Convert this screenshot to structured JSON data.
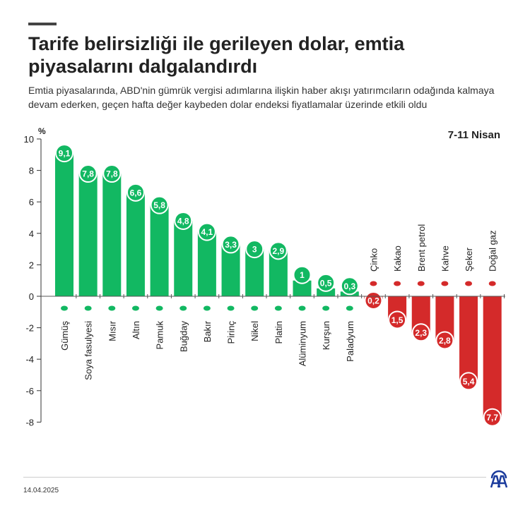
{
  "title": "Tarife belirsizliği ile gerileyen dolar, emtia piyasalarını dalgalandırdı",
  "subtitle": "Emtia piyasalarında, ABD'nin gümrük vergisi adımlarına ilişkin haber akışı yatırımcıların odağında kalmaya devam ederken, geçen hafta değer kaybeden dolar endeksi fiyatlamalar üzerinde etkili oldu",
  "footer": {
    "date": "14.04.2025",
    "logo": "AA"
  },
  "colors": {
    "positive": "#12b862",
    "negative": "#d42a2a",
    "logo": "#1a3a9c"
  },
  "chart_data": {
    "type": "bar",
    "period_label": "7-11 Nisan",
    "ylabel": "%",
    "ylim": [
      -8,
      10
    ],
    "yticks": [
      10,
      8,
      6,
      4,
      2,
      0,
      -2,
      -4,
      -6,
      -8
    ],
    "grid": false,
    "categories": [
      "Gümüş",
      "Soya fasulyesi",
      "Mısır",
      "Altın",
      "Pamuk",
      "Buğday",
      "Bakır",
      "Pirinç",
      "Nikel",
      "Platin",
      "Alüminyum",
      "Kurşun",
      "Paladyum",
      "Çinko",
      "Kakao",
      "Brent petrol",
      "Kahve",
      "Şeker",
      "Doğal gaz"
    ],
    "values": [
      9.1,
      7.8,
      7.8,
      6.6,
      5.8,
      4.8,
      4.1,
      3.3,
      3,
      2.9,
      1,
      0.5,
      0.3,
      -0.2,
      -1.5,
      -2.3,
      -2.8,
      -5.4,
      -7.7
    ],
    "value_labels": [
      "9,1",
      "7,8",
      "7,8",
      "6,6",
      "5,8",
      "4,8",
      "4,1",
      "3,3",
      "3",
      "2,9",
      "1",
      "0,5",
      "0,3",
      "0,2",
      "1,5",
      "2,3",
      "2,8",
      "5,4",
      "7,7"
    ],
    "icons": [
      "metal-icon",
      "soybean-icon",
      "corn-icon",
      "metal-icon",
      "cotton-icon",
      "wheat-icon",
      "metal-icon",
      "rice-icon",
      "metal-icon",
      "metal-icon",
      "metal-icon",
      "metal-icon",
      "metal-icon",
      "metal-icon",
      "cocoa-icon",
      "oil-barrel-icon",
      "coffee-bean-icon",
      "sugar-icon",
      "flame-icon"
    ]
  }
}
